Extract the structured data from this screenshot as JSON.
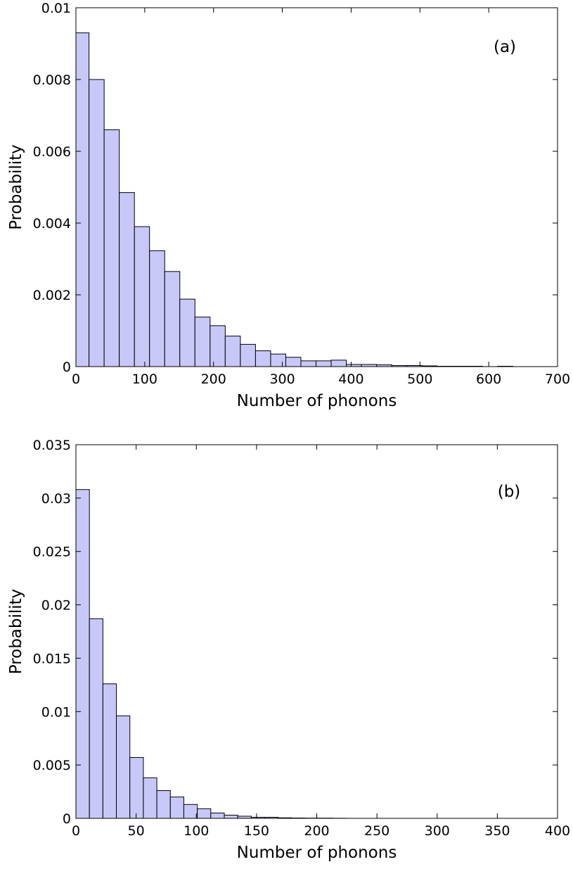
{
  "chart_data": [
    {
      "type": "bar",
      "panel_label": "(a)",
      "xlabel": "Number of phonons",
      "ylabel": "Probability",
      "xlim": [
        0,
        700
      ],
      "ylim": [
        0,
        0.01
      ],
      "xticks": [
        0,
        100,
        200,
        300,
        400,
        500,
        600,
        700
      ],
      "xtick_labels": [
        "0",
        "100",
        "200",
        "300",
        "400",
        "500",
        "600",
        "700"
      ],
      "yticks": [
        0,
        0.002,
        0.004,
        0.006,
        0.008,
        0.01
      ],
      "ytick_labels": [
        "0",
        "0.002",
        "0.004",
        "0.006",
        "0.008",
        "0.01"
      ],
      "bin_width": 22,
      "bin_start": -3,
      "values": [
        0.0093,
        0.008,
        0.0066,
        0.00485,
        0.0039,
        0.00323,
        0.00265,
        0.00188,
        0.00138,
        0.00114,
        0.00085,
        0.00062,
        0.00044,
        0.00035,
        0.00026,
        0.00016,
        0.00016,
        0.00018,
        6e-05,
        6e-05,
        5e-05,
        3e-05,
        3e-05,
        2e-05,
        1e-05,
        1e-05,
        1e-05,
        0.0,
        1e-05,
        0.0
      ],
      "grid": false,
      "fill_color": "#c8c8f8",
      "edge_color": "#000000"
    },
    {
      "type": "bar",
      "panel_label": "(b)",
      "xlabel": "Number of phonons",
      "ylabel": "Probability",
      "xlim": [
        0,
        400
      ],
      "ylim": [
        0,
        0.035
      ],
      "xticks": [
        0,
        50,
        100,
        150,
        200,
        250,
        300,
        350,
        400
      ],
      "xtick_labels": [
        "0",
        "50",
        "100",
        "150",
        "200",
        "250",
        "300",
        "350",
        "400"
      ],
      "yticks": [
        0,
        0.005,
        0.01,
        0.015,
        0.02,
        0.025,
        0.03,
        0.035
      ],
      "ytick_labels": [
        "0",
        "0.005",
        "0.01",
        "0.015",
        "0.02",
        "0.025",
        "0.03",
        "0.035"
      ],
      "bin_width": 11.2,
      "bin_start": 0,
      "values": [
        0.0308,
        0.0187,
        0.0126,
        0.0096,
        0.0057,
        0.0038,
        0.0026,
        0.002,
        0.0013,
        0.0009,
        0.0005,
        0.0003,
        0.0002,
        0.0001,
        0.0001,
        5e-05,
        3e-05,
        2e-05,
        2e-05,
        1e-05
      ],
      "grid": false,
      "fill_color": "#c8c8f8",
      "edge_color": "#000000"
    }
  ]
}
